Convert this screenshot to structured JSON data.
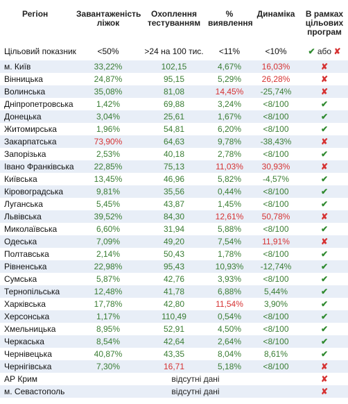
{
  "header": {
    "region": "Регіон",
    "beds": "Завантаженість ліжок",
    "testing": "Охоплення тестуванням",
    "detection": "% виявлення",
    "dynamics": "Динаміка",
    "targets": "В рамках цільових програм"
  },
  "target_row": {
    "label": "Цільовий показник",
    "beds": "<50%",
    "testing": ">24 на 100 тис.",
    "detection": "<11%",
    "dynamics": "<10%",
    "ok_symbol": "✔",
    "or_word": "або",
    "no_symbol": "✘"
  },
  "colors": {
    "good": "#3a7d34",
    "bad": "#d63232",
    "stripe": "#e8eef7"
  },
  "rows": [
    {
      "name": "м. Київ",
      "beds": "33,22%",
      "beds_bad": false,
      "testing": "102,15",
      "testing_bad": false,
      "detection": "4,67%",
      "detection_bad": false,
      "dynamics": "16,03%",
      "dynamics_bad": true,
      "ok": false,
      "na": ""
    },
    {
      "name": "Вінницька",
      "beds": "24,87%",
      "beds_bad": false,
      "testing": "95,15",
      "testing_bad": false,
      "detection": "5,29%",
      "detection_bad": false,
      "dynamics": "26,28%",
      "dynamics_bad": true,
      "ok": false,
      "na": ""
    },
    {
      "name": "Волинська",
      "beds": "35,08%",
      "beds_bad": false,
      "testing": "81,08",
      "testing_bad": false,
      "detection": "14,45%",
      "detection_bad": true,
      "dynamics": "-25,74%",
      "dynamics_bad": false,
      "ok": false,
      "na": ""
    },
    {
      "name": "Дніпропетровська",
      "beds": "1,42%",
      "beds_bad": false,
      "testing": "69,88",
      "testing_bad": false,
      "detection": "3,24%",
      "detection_bad": false,
      "dynamics": "<8/100",
      "dynamics_bad": false,
      "ok": true,
      "na": ""
    },
    {
      "name": "Донецька",
      "beds": "3,04%",
      "beds_bad": false,
      "testing": "25,61",
      "testing_bad": false,
      "detection": "1,67%",
      "detection_bad": false,
      "dynamics": "<8/100",
      "dynamics_bad": false,
      "ok": true,
      "na": ""
    },
    {
      "name": "Житомирська",
      "beds": "1,96%",
      "beds_bad": false,
      "testing": "54,81",
      "testing_bad": false,
      "detection": "6,20%",
      "detection_bad": false,
      "dynamics": "<8/100",
      "dynamics_bad": false,
      "ok": true,
      "na": ""
    },
    {
      "name": "Закарпатська",
      "beds": "73,90%",
      "beds_bad": true,
      "testing": "64,63",
      "testing_bad": false,
      "detection": "9,78%",
      "detection_bad": false,
      "dynamics": "-38,43%",
      "dynamics_bad": false,
      "ok": false,
      "na": ""
    },
    {
      "name": "Запорізька",
      "beds": "2,53%",
      "beds_bad": false,
      "testing": "40,18",
      "testing_bad": false,
      "detection": "2,78%",
      "detection_bad": false,
      "dynamics": "<8/100",
      "dynamics_bad": false,
      "ok": true,
      "na": ""
    },
    {
      "name": "Івано Франківська",
      "beds": "22,85%",
      "beds_bad": false,
      "testing": "75,13",
      "testing_bad": false,
      "detection": "11,03%",
      "detection_bad": true,
      "dynamics": "30,93%",
      "dynamics_bad": true,
      "ok": false,
      "na": ""
    },
    {
      "name": "Київська",
      "beds": "13,45%",
      "beds_bad": false,
      "testing": "46,96",
      "testing_bad": false,
      "detection": "5,82%",
      "detection_bad": false,
      "dynamics": "-4,57%",
      "dynamics_bad": false,
      "ok": true,
      "na": ""
    },
    {
      "name": "Кіровоградська",
      "beds": "9,81%",
      "beds_bad": false,
      "testing": "35,56",
      "testing_bad": false,
      "detection": "0,44%",
      "detection_bad": false,
      "dynamics": "<8/100",
      "dynamics_bad": false,
      "ok": true,
      "na": ""
    },
    {
      "name": "Луганська",
      "beds": "5,45%",
      "beds_bad": false,
      "testing": "43,87",
      "testing_bad": false,
      "detection": "1,45%",
      "detection_bad": false,
      "dynamics": "<8/100",
      "dynamics_bad": false,
      "ok": true,
      "na": ""
    },
    {
      "name": "Львівська",
      "beds": "39,52%",
      "beds_bad": false,
      "testing": "84,30",
      "testing_bad": false,
      "detection": "12,61%",
      "detection_bad": true,
      "dynamics": "50,78%",
      "dynamics_bad": true,
      "ok": false,
      "na": ""
    },
    {
      "name": "Миколаївська",
      "beds": "6,60%",
      "beds_bad": false,
      "testing": "31,94",
      "testing_bad": false,
      "detection": "5,88%",
      "detection_bad": false,
      "dynamics": "<8/100",
      "dynamics_bad": false,
      "ok": true,
      "na": ""
    },
    {
      "name": "Одеська",
      "beds": "7,09%",
      "beds_bad": false,
      "testing": "49,20",
      "testing_bad": false,
      "detection": "7,54%",
      "detection_bad": false,
      "dynamics": "11,91%",
      "dynamics_bad": true,
      "ok": false,
      "na": ""
    },
    {
      "name": "Полтавська",
      "beds": "2,14%",
      "beds_bad": false,
      "testing": "50,43",
      "testing_bad": false,
      "detection": "1,78%",
      "detection_bad": false,
      "dynamics": "<8/100",
      "dynamics_bad": false,
      "ok": true,
      "na": ""
    },
    {
      "name": "Рівненська",
      "beds": "22,98%",
      "beds_bad": false,
      "testing": "95,43",
      "testing_bad": false,
      "detection": "10,93%",
      "detection_bad": false,
      "dynamics": "-12,74%",
      "dynamics_bad": false,
      "ok": true,
      "na": ""
    },
    {
      "name": "Сумська",
      "beds": "5,87%",
      "beds_bad": false,
      "testing": "42,76",
      "testing_bad": false,
      "detection": "3,93%",
      "detection_bad": false,
      "dynamics": "<8/100",
      "dynamics_bad": false,
      "ok": true,
      "na": ""
    },
    {
      "name": "Тернопільська",
      "beds": "12,48%",
      "beds_bad": false,
      "testing": "41,78",
      "testing_bad": false,
      "detection": "6,88%",
      "detection_bad": false,
      "dynamics": "5,44%",
      "dynamics_bad": false,
      "ok": true,
      "na": ""
    },
    {
      "name": "Харківська",
      "beds": "17,78%",
      "beds_bad": false,
      "testing": "42,80",
      "testing_bad": false,
      "detection": "11,54%",
      "detection_bad": true,
      "dynamics": "3,90%",
      "dynamics_bad": false,
      "ok": true,
      "na": ""
    },
    {
      "name": "Херсонська",
      "beds": "1,17%",
      "beds_bad": false,
      "testing": "110,49",
      "testing_bad": false,
      "detection": "0,54%",
      "detection_bad": false,
      "dynamics": "<8/100",
      "dynamics_bad": false,
      "ok": true,
      "na": ""
    },
    {
      "name": "Хмельницька",
      "beds": "8,95%",
      "beds_bad": false,
      "testing": "52,91",
      "testing_bad": false,
      "detection": "4,50%",
      "detection_bad": false,
      "dynamics": "<8/100",
      "dynamics_bad": false,
      "ok": true,
      "na": ""
    },
    {
      "name": "Черкаська",
      "beds": "8,54%",
      "beds_bad": false,
      "testing": "42,64",
      "testing_bad": false,
      "detection": "2,64%",
      "detection_bad": false,
      "dynamics": "<8/100",
      "dynamics_bad": false,
      "ok": true,
      "na": ""
    },
    {
      "name": "Чернівецька",
      "beds": "40,87%",
      "beds_bad": false,
      "testing": "43,35",
      "testing_bad": false,
      "detection": "8,04%",
      "detection_bad": false,
      "dynamics": "8,61%",
      "dynamics_bad": false,
      "ok": true,
      "na": ""
    },
    {
      "name": "Чернігівська",
      "beds": "7,30%",
      "beds_bad": false,
      "testing": "16,71",
      "testing_bad": true,
      "detection": "5,18%",
      "detection_bad": false,
      "dynamics": "<8/100",
      "dynamics_bad": false,
      "ok": false,
      "na": ""
    },
    {
      "name": "АР Крим",
      "beds": "",
      "beds_bad": false,
      "testing": "",
      "testing_bad": false,
      "detection": "",
      "detection_bad": false,
      "dynamics": "",
      "dynamics_bad": false,
      "ok": false,
      "na": "відсутні дані"
    },
    {
      "name": "м. Севастополь",
      "beds": "",
      "beds_bad": false,
      "testing": "",
      "testing_bad": false,
      "detection": "",
      "detection_bad": false,
      "dynamics": "",
      "dynamics_bad": false,
      "ok": false,
      "na": "відсутні дані"
    }
  ]
}
